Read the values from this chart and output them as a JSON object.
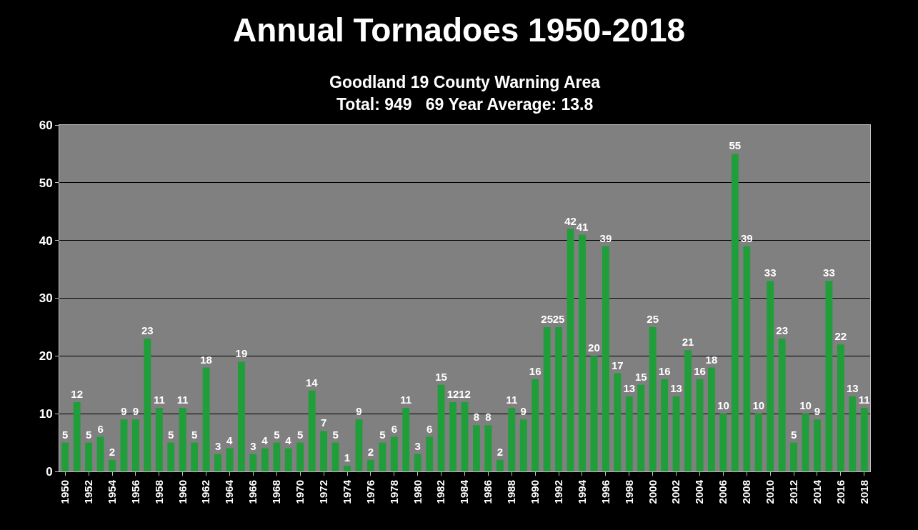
{
  "chart_data": {
    "type": "bar",
    "title": "Annual Tornadoes 1950-2018",
    "subtitle": "Goodland 19 County Warning Area",
    "annotations": [
      "Total: 949   69 Year Average: 13.8"
    ],
    "categories": [
      "1950",
      null,
      "1952",
      null,
      "1954",
      null,
      "1956",
      null,
      "1958",
      null,
      "1960",
      null,
      "1962",
      null,
      "1964",
      null,
      "1966",
      null,
      "1968",
      null,
      "1970",
      null,
      "1972",
      null,
      "1974",
      null,
      "1976",
      null,
      "1978",
      null,
      "1980",
      null,
      "1982",
      null,
      "1984",
      null,
      "1986",
      null,
      "1988",
      null,
      "1990",
      null,
      "1992",
      null,
      "1994",
      null,
      "1996",
      null,
      "1998",
      null,
      "2000",
      null,
      "2002",
      null,
      "2004",
      null,
      "2006",
      null,
      "2008",
      null,
      "2010",
      null,
      "2012",
      null,
      "2014",
      null,
      "2016",
      null,
      "2018"
    ],
    "values": [
      5,
      12,
      5,
      6,
      2,
      9,
      9,
      23,
      11,
      5,
      11,
      5,
      18,
      3,
      4,
      19,
      3,
      4,
      5,
      4,
      5,
      14,
      7,
      5,
      1,
      9,
      2,
      5,
      6,
      11,
      3,
      6,
      15,
      12,
      12,
      8,
      8,
      2,
      11,
      9,
      16,
      25,
      25,
      42,
      41,
      20,
      39,
      17,
      13,
      15,
      25,
      16,
      13,
      21,
      16,
      18,
      10,
      55,
      39,
      10,
      33,
      23,
      5,
      10,
      9,
      33,
      22,
      13,
      11
    ],
    "color": "#1f9e3a",
    "ylim": [
      0,
      60
    ],
    "yticks": [
      0,
      10,
      20,
      30,
      40,
      50,
      60
    ],
    "grid": "y",
    "data_labels": true
  }
}
